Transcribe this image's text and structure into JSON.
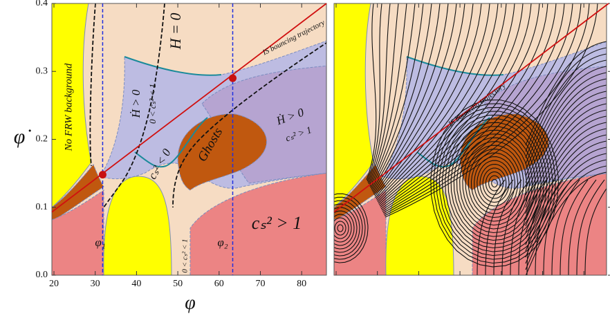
{
  "chart_data": {
    "type": "phase-diagram",
    "xlabel": "φ",
    "ylabel": "φ̇",
    "xlim": [
      19.5,
      86
    ],
    "ylim": [
      0,
      0.4
    ],
    "xticks": [
      20,
      30,
      40,
      50,
      60,
      70,
      80
    ],
    "yticks": [
      {
        "value": 0,
        "label": "0.0"
      },
      0.1,
      0.2,
      0.3,
      0.4
    ],
    "vlines": [
      31.8,
      63.3
    ],
    "points": {
      "x": [
        31.8,
        63.3
      ],
      "y": [
        0.148,
        0.29
      ]
    },
    "trajectory": {
      "x": [
        19.5,
        86
      ],
      "y": [
        0.093,
        0.4
      ]
    },
    "annotations": [
      "No FRW background",
      "H = 0",
      "IS bouncing trajectory",
      "Ḣ > 0",
      "0 < cₛ² < 1",
      "cₛ² < 0",
      "Ghosts",
      "Ḣ > 0",
      "cₛ² > 1",
      "cₛ² > 1",
      "φ₁",
      "φ₂",
      "0 < cₛ² < 1"
    ],
    "right_annotation": "IS bouncing trajectory"
  }
}
